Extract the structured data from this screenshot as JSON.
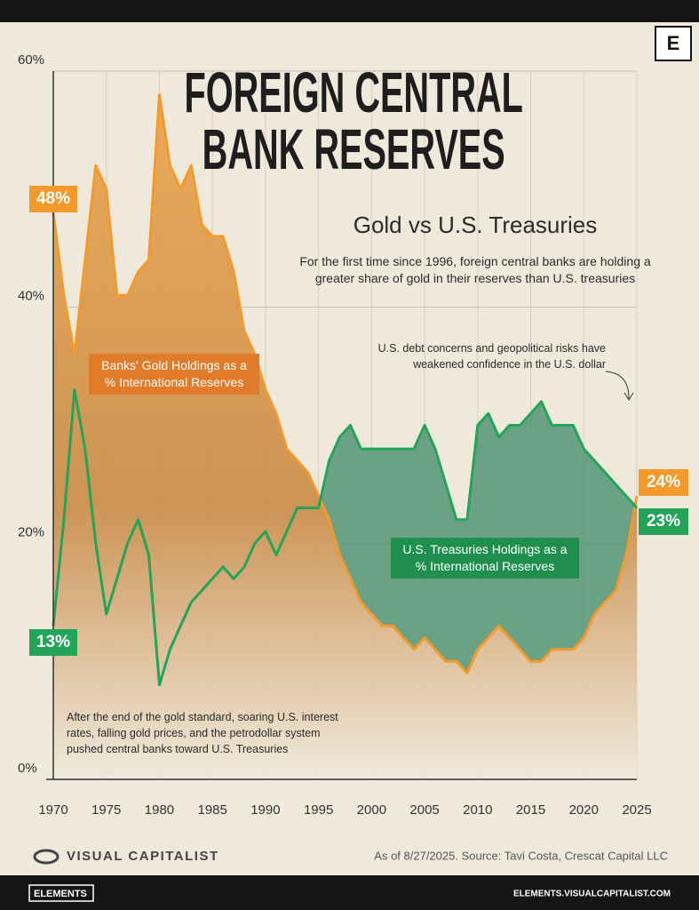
{
  "header": {
    "logo": "E"
  },
  "chart_data": {
    "type": "line",
    "title": "FOREIGN CENTRAL BANK RESERVES",
    "subtitle": "Gold vs U.S. Treasuries",
    "description": "For the first time since 1996, foreign central banks are holding a greater share of gold in their reserves than U.S. treasuries",
    "annotations": [
      "U.S. debt concerns and geopolitical risks have weakened confidence in the U.S. dollar",
      "After the end of the gold standard, soaring U.S. interest rates, falling gold prices, and the petrodollar system pushed central banks toward U.S. Treasuries"
    ],
    "x": [
      1970,
      1971,
      1972,
      1973,
      1974,
      1975,
      1976,
      1977,
      1978,
      1979,
      1980,
      1981,
      1982,
      1983,
      1984,
      1985,
      1986,
      1987,
      1988,
      1989,
      1990,
      1991,
      1992,
      1993,
      1994,
      1995,
      1996,
      1997,
      1998,
      1999,
      2000,
      2001,
      2002,
      2003,
      2004,
      2005,
      2006,
      2007,
      2008,
      2009,
      2010,
      2011,
      2012,
      2013,
      2014,
      2015,
      2016,
      2017,
      2018,
      2019,
      2020,
      2021,
      2022,
      2023,
      2024,
      2025
    ],
    "series": [
      {
        "name": "Banks' Gold Holdings as a % International Reserves",
        "color": "#f39a2a",
        "start_label": "48%",
        "end_label": "24%",
        "values": [
          48,
          41,
          36,
          44,
          52,
          50,
          41,
          41,
          43,
          44,
          58,
          52,
          50,
          52,
          47,
          46,
          46,
          43,
          38,
          36,
          33,
          31,
          28,
          27,
          26,
          24,
          22,
          19,
          17,
          15,
          14,
          13,
          13,
          12,
          11,
          12,
          11,
          10,
          10,
          9,
          11,
          12,
          13,
          12,
          11,
          10,
          10,
          11,
          11,
          11,
          12,
          14,
          15,
          16,
          19,
          24
        ]
      },
      {
        "name": "U.S. Treasuries Holdings as a % International Reserves",
        "color": "#22a558",
        "start_label": "13%",
        "end_label": "23%",
        "values": [
          13,
          22,
          33,
          28,
          20,
          14,
          17,
          20,
          22,
          19,
          8,
          11,
          13,
          15,
          16,
          17,
          18,
          17,
          18,
          20,
          21,
          19,
          21,
          23,
          23,
          23,
          27,
          29,
          30,
          28,
          28,
          28,
          28,
          28,
          28,
          30,
          28,
          25,
          22,
          22,
          30,
          31,
          29,
          30,
          30,
          31,
          32,
          30,
          30,
          30,
          28,
          27,
          26,
          25,
          24,
          23
        ]
      }
    ],
    "xlim": [
      1970,
      2025
    ],
    "xticks": [
      1970,
      1975,
      1980,
      1985,
      1990,
      1995,
      2000,
      2005,
      2010,
      2015,
      2020,
      2025
    ],
    "ylim": [
      0,
      60
    ],
    "yticks": [
      {
        "value": 0,
        "label": "0%"
      },
      {
        "value": 20,
        "label": "20%"
      },
      {
        "value": 40,
        "label": "40%"
      },
      {
        "value": 60,
        "label": "60%"
      }
    ],
    "grid": true
  },
  "footer": {
    "brand": "VISUAL CAPITALIST",
    "source": "As of 8/27/2025. Source: Tavi Costa, Crescat Capital LLC",
    "badge": "ELEMENTS",
    "url": "ELEMENTS.VISUALCAPITALIST.COM"
  }
}
